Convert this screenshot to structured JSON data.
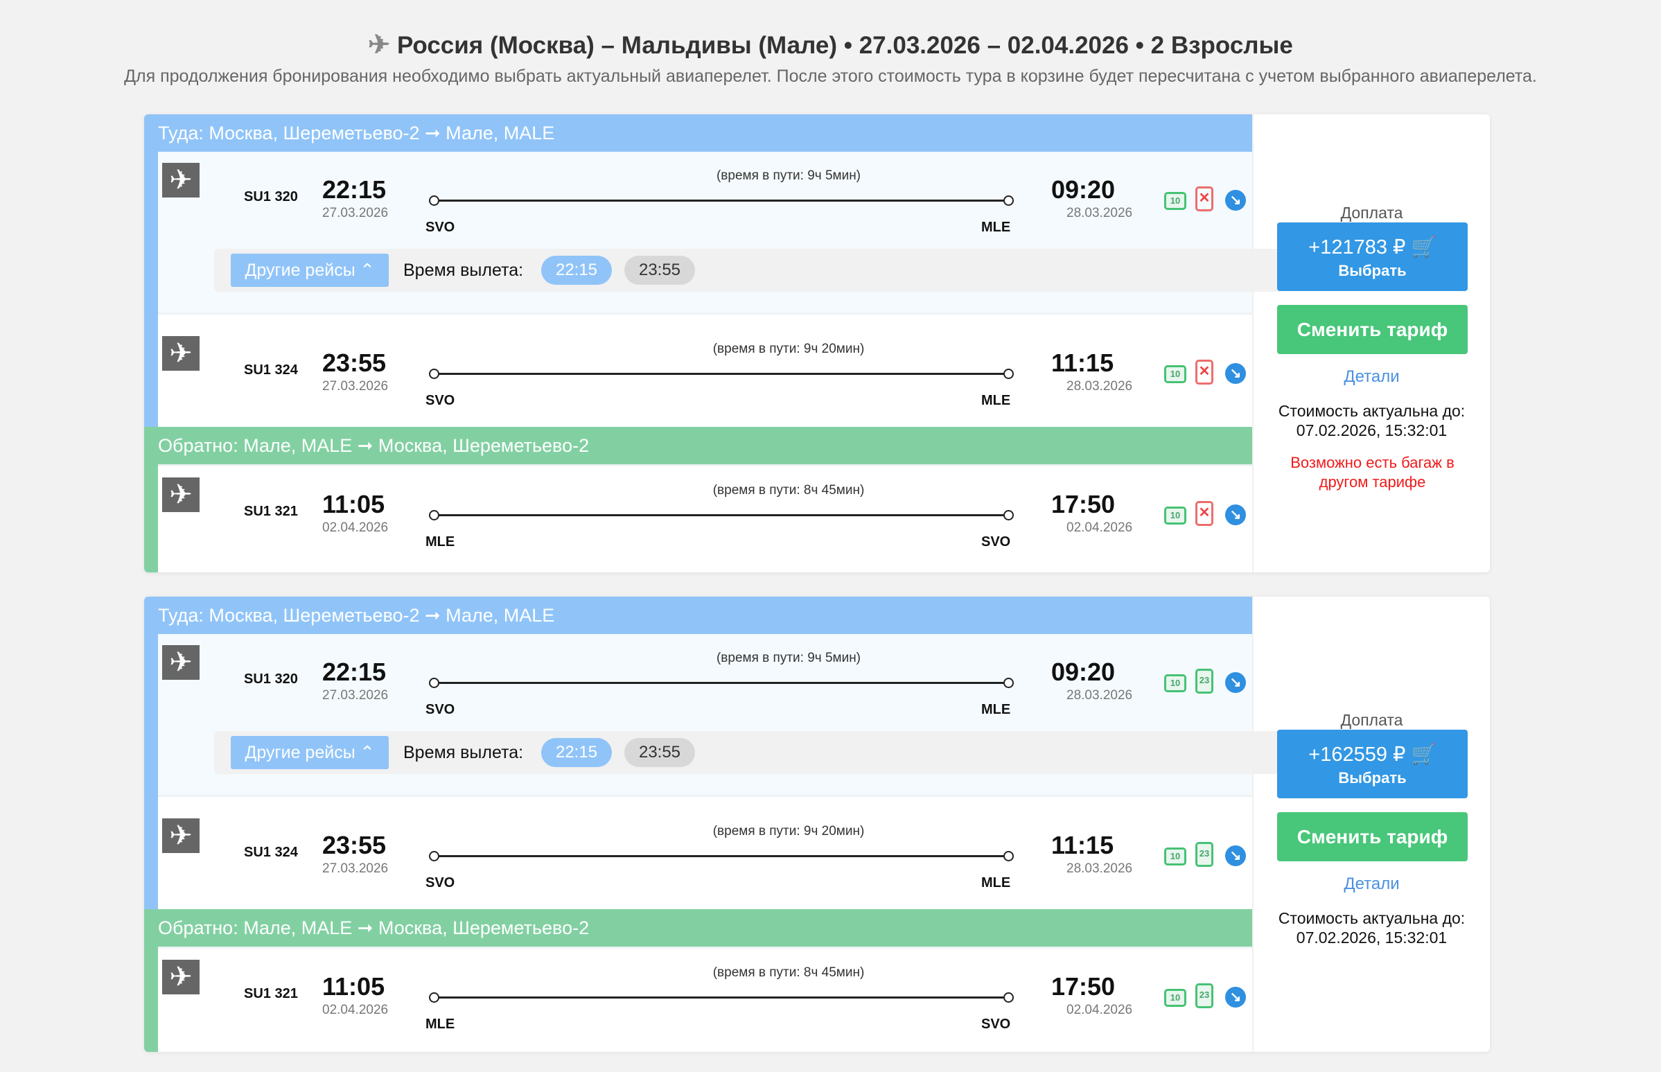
{
  "header": {
    "title": "Россия (Москва) – Мальдивы (Мале) • 27.03.2026 – 02.04.2026 • 2 Взрослые",
    "icon": "airplane-icon",
    "subtitle": "Для продолжения бронирования необходимо выбрать актуальный авиаперелет. После этого стоимость тура в корзине будет пересчитана с учетом выбранного авиаперелета."
  },
  "colors": {
    "outbound": "#90c4f8",
    "return": "#82d0a2",
    "buy": "#3297e4",
    "change": "#48c67a",
    "warning": "#f01a1a"
  },
  "offers": [
    {
      "outbound_header": "Туда: Москва, Шереметьево-2  ➞  Мале, MALE",
      "return_header": "Обратно: Мале, MALE  ➞  Москва, Шереметьево-2",
      "other_flights_label": "Другие рейсы ⌃",
      "departure_time_label": "Время вылета:",
      "departure_options": [
        "22:15",
        "23:55"
      ],
      "flights": [
        {
          "number": "SU1 320",
          "dep_time": "22:15",
          "dep_date": "27.03.2026",
          "duration": "(время в пути: 9ч 5мин)",
          "from": "SVO",
          "to": "MLE",
          "arr_time": "09:20",
          "arr_date": "28.03.2026",
          "hand_bag": "10",
          "luggage": "✕",
          "luggage_included": false
        },
        {
          "number": "SU1 324",
          "dep_time": "23:55",
          "dep_date": "27.03.2026",
          "duration": "(время в пути: 9ч 20мин)",
          "from": "SVO",
          "to": "MLE",
          "arr_time": "11:15",
          "arr_date": "28.03.2026",
          "hand_bag": "10",
          "luggage": "✕",
          "luggage_included": false
        },
        {
          "number": "SU1 321",
          "dep_time": "11:05",
          "dep_date": "02.04.2026",
          "duration": "(время в пути: 8ч 45мин)",
          "from": "MLE",
          "to": "SVO",
          "arr_time": "17:50",
          "arr_date": "02.04.2026",
          "hand_bag": "10",
          "luggage": "✕",
          "luggage_included": false
        }
      ],
      "surcharge_label": "Доплата",
      "price": "+121783 ₽ 🛒",
      "select_label": "Выбрать",
      "change_tariff": "Сменить тариф",
      "details": "Детали",
      "valid_label": "Стоимость актуальна до:",
      "valid_until": "07.02.2026, 15:32:01",
      "warning": "Возможно есть багаж в другом тарифе"
    },
    {
      "outbound_header": "Туда: Москва, Шереметьево-2  ➞  Мале, MALE",
      "return_header": "Обратно: Мале, MALE  ➞  Москва, Шереметьево-2",
      "other_flights_label": "Другие рейсы ⌃",
      "departure_time_label": "Время вылета:",
      "departure_options": [
        "22:15",
        "23:55"
      ],
      "flights": [
        {
          "number": "SU1 320",
          "dep_time": "22:15",
          "dep_date": "27.03.2026",
          "duration": "(время в пути: 9ч 5мин)",
          "from": "SVO",
          "to": "MLE",
          "arr_time": "09:20",
          "arr_date": "28.03.2026",
          "hand_bag": "10",
          "luggage": "23",
          "luggage_included": true
        },
        {
          "number": "SU1 324",
          "dep_time": "23:55",
          "dep_date": "27.03.2026",
          "duration": "(время в пути: 9ч 20мин)",
          "from": "SVO",
          "to": "MLE",
          "arr_time": "11:15",
          "arr_date": "28.03.2026",
          "hand_bag": "10",
          "luggage": "23",
          "luggage_included": true
        },
        {
          "number": "SU1 321",
          "dep_time": "11:05",
          "dep_date": "02.04.2026",
          "duration": "(время в пути: 8ч 45мин)",
          "from": "MLE",
          "to": "SVO",
          "arr_time": "17:50",
          "arr_date": "02.04.2026",
          "hand_bag": "10",
          "luggage": "23",
          "luggage_included": true
        }
      ],
      "surcharge_label": "Доплата",
      "price": "+162559 ₽ 🛒",
      "select_label": "Выбрать",
      "change_tariff": "Сменить тариф",
      "details": "Детали",
      "valid_label": "Стоимость актуальна до:",
      "valid_until": "07.02.2026, 15:32:01"
    }
  ]
}
